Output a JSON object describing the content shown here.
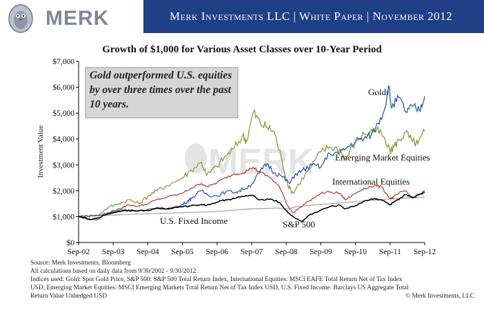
{
  "header": {
    "logo_text": "MERK",
    "banner_text": "Merk Investments LLC  |  White Paper  |  November 2012",
    "banner_color": "#1f3f86"
  },
  "chart_data": {
    "type": "line",
    "title": "Growth of $1,000 for Various Asset Classes over 10-Year Period",
    "xlabel": "",
    "ylabel": "Investment Value",
    "x_ticks": [
      "Sep-02",
      "Sep-03",
      "Sep-04",
      "Sep-05",
      "Sep-06",
      "Sep-07",
      "Sep-08",
      "Sep-09",
      "Sep-10",
      "Sep-11",
      "Sep-12"
    ],
    "y_ticks": [
      "$0",
      "$1,000",
      "$2,000",
      "$3,000",
      "$4,000",
      "$5,000",
      "$6,000",
      "$7,000"
    ],
    "ylim": [
      0,
      7000
    ],
    "grid": false,
    "watermark": "MERK",
    "callout": "Gold outperformed U.S. equities by over three times over the past 10 years.",
    "series": [
      {
        "name": "Gold",
        "color": "#2d5d9f",
        "points": [
          [
            2002.75,
            1000
          ],
          [
            2003.0,
            1020
          ],
          [
            2003.3,
            1040
          ],
          [
            2003.7,
            1160
          ],
          [
            2004.0,
            1280
          ],
          [
            2004.3,
            1220
          ],
          [
            2004.7,
            1230
          ],
          [
            2005.0,
            1350
          ],
          [
            2005.3,
            1300
          ],
          [
            2005.7,
            1420
          ],
          [
            2005.9,
            1600
          ],
          [
            2006.0,
            1700
          ],
          [
            2006.3,
            2000
          ],
          [
            2006.5,
            1830
          ],
          [
            2006.75,
            1800
          ],
          [
            2007.0,
            1960
          ],
          [
            2007.3,
            1950
          ],
          [
            2007.5,
            2050
          ],
          [
            2007.75,
            2250
          ],
          [
            2008.0,
            2750
          ],
          [
            2008.2,
            3050
          ],
          [
            2008.4,
            2700
          ],
          [
            2008.6,
            2580
          ],
          [
            2008.85,
            2280
          ],
          [
            2009.0,
            2620
          ],
          [
            2009.2,
            2770
          ],
          [
            2009.5,
            2990
          ],
          [
            2009.75,
            2920
          ],
          [
            2010.0,
            3450
          ],
          [
            2010.3,
            3460
          ],
          [
            2010.5,
            3670
          ],
          [
            2010.75,
            3900
          ],
          [
            2011.0,
            4020
          ],
          [
            2011.2,
            4150
          ],
          [
            2011.4,
            4610
          ],
          [
            2011.6,
            5200
          ],
          [
            2011.7,
            6050
          ],
          [
            2011.8,
            5200
          ],
          [
            2012.0,
            5600
          ],
          [
            2012.2,
            5050
          ],
          [
            2012.4,
            5250
          ],
          [
            2012.6,
            5100
          ],
          [
            2012.75,
            5650
          ]
        ]
      },
      {
        "name": "Emerging Market Equities",
        "color": "#8c9c3e",
        "points": [
          [
            2002.75,
            1000
          ],
          [
            2003.0,
            1040
          ],
          [
            2003.3,
            1050
          ],
          [
            2003.6,
            1350
          ],
          [
            2003.9,
            1500
          ],
          [
            2004.2,
            1650
          ],
          [
            2004.5,
            1500
          ],
          [
            2004.75,
            1800
          ],
          [
            2005.0,
            2000
          ],
          [
            2005.3,
            2200
          ],
          [
            2005.75,
            2500
          ],
          [
            2006.0,
            2800
          ],
          [
            2006.3,
            3100
          ],
          [
            2006.45,
            2600
          ],
          [
            2006.75,
            2950
          ],
          [
            2007.0,
            3350
          ],
          [
            2007.25,
            3650
          ],
          [
            2007.5,
            4150
          ],
          [
            2007.6,
            3900
          ],
          [
            2007.8,
            5050
          ],
          [
            2008.0,
            4600
          ],
          [
            2008.2,
            4450
          ],
          [
            2008.4,
            4300
          ],
          [
            2008.6,
            3300
          ],
          [
            2008.8,
            2200
          ],
          [
            2008.95,
            1900
          ],
          [
            2009.1,
            2250
          ],
          [
            2009.4,
            2800
          ],
          [
            2009.75,
            3500
          ],
          [
            2010.0,
            3700
          ],
          [
            2010.3,
            3600
          ],
          [
            2010.45,
            3200
          ],
          [
            2010.75,
            3900
          ],
          [
            2011.0,
            4200
          ],
          [
            2011.3,
            4350
          ],
          [
            2011.5,
            4200
          ],
          [
            2011.75,
            3500
          ],
          [
            2011.85,
            3700
          ],
          [
            2012.0,
            3950
          ],
          [
            2012.2,
            4250
          ],
          [
            2012.4,
            3900
          ],
          [
            2012.55,
            3800
          ],
          [
            2012.75,
            4300
          ]
        ]
      },
      {
        "name": "International Equities",
        "color": "#b3423a",
        "points": [
          [
            2002.75,
            1000
          ],
          [
            2003.0,
            900
          ],
          [
            2003.3,
            880
          ],
          [
            2003.6,
            1150
          ],
          [
            2003.9,
            1300
          ],
          [
            2004.2,
            1450
          ],
          [
            2004.5,
            1400
          ],
          [
            2004.75,
            1500
          ],
          [
            2005.0,
            1650
          ],
          [
            2005.3,
            1750
          ],
          [
            2005.75,
            1900
          ],
          [
            2006.0,
            2100
          ],
          [
            2006.3,
            2280
          ],
          [
            2006.5,
            2150
          ],
          [
            2006.75,
            2320
          ],
          [
            2007.0,
            2500
          ],
          [
            2007.25,
            2650
          ],
          [
            2007.5,
            2700
          ],
          [
            2007.8,
            2900
          ],
          [
            2008.0,
            2700
          ],
          [
            2008.3,
            2500
          ],
          [
            2008.55,
            2150
          ],
          [
            2008.8,
            1400
          ],
          [
            2008.95,
            1150
          ],
          [
            2009.1,
            1300
          ],
          [
            2009.4,
            1600
          ],
          [
            2009.75,
            1900
          ],
          [
            2010.0,
            1950
          ],
          [
            2010.3,
            1900
          ],
          [
            2010.45,
            1650
          ],
          [
            2010.75,
            1900
          ],
          [
            2011.0,
            2100
          ],
          [
            2011.3,
            2200
          ],
          [
            2011.5,
            2150
          ],
          [
            2011.75,
            1700
          ],
          [
            2011.85,
            1750
          ],
          [
            2012.0,
            1900
          ],
          [
            2012.2,
            2000
          ],
          [
            2012.4,
            1700
          ],
          [
            2012.6,
            1850
          ],
          [
            2012.75,
            2000
          ]
        ]
      },
      {
        "name": "S&P 500",
        "color": "#000000",
        "points": [
          [
            2002.75,
            1000
          ],
          [
            2002.9,
            960
          ],
          [
            2003.1,
            880
          ],
          [
            2003.3,
            950
          ],
          [
            2003.6,
            1100
          ],
          [
            2003.9,
            1200
          ],
          [
            2004.2,
            1250
          ],
          [
            2004.5,
            1230
          ],
          [
            2004.75,
            1230
          ],
          [
            2005.0,
            1320
          ],
          [
            2005.3,
            1300
          ],
          [
            2005.75,
            1380
          ],
          [
            2006.0,
            1420
          ],
          [
            2006.3,
            1470
          ],
          [
            2006.45,
            1440
          ],
          [
            2006.75,
            1560
          ],
          [
            2007.0,
            1650
          ],
          [
            2007.25,
            1700
          ],
          [
            2007.5,
            1780
          ],
          [
            2007.75,
            1820
          ],
          [
            2008.0,
            1650
          ],
          [
            2008.3,
            1680
          ],
          [
            2008.55,
            1550
          ],
          [
            2008.8,
            1150
          ],
          [
            2008.95,
            1000
          ],
          [
            2009.2,
            800
          ],
          [
            2009.4,
            1050
          ],
          [
            2009.75,
            1250
          ],
          [
            2010.0,
            1380
          ],
          [
            2010.3,
            1440
          ],
          [
            2010.45,
            1300
          ],
          [
            2010.75,
            1420
          ],
          [
            2011.0,
            1600
          ],
          [
            2011.3,
            1700
          ],
          [
            2011.5,
            1650
          ],
          [
            2011.75,
            1450
          ],
          [
            2011.85,
            1550
          ],
          [
            2012.0,
            1650
          ],
          [
            2012.2,
            1850
          ],
          [
            2012.4,
            1750
          ],
          [
            2012.6,
            1850
          ],
          [
            2012.75,
            1950
          ]
        ]
      },
      {
        "name": "U.S. Fixed Income",
        "color": "#a8a8a8",
        "points": [
          [
            2002.75,
            1000
          ],
          [
            2003.5,
            1050
          ],
          [
            2004.75,
            1110
          ],
          [
            2005.75,
            1150
          ],
          [
            2006.75,
            1200
          ],
          [
            2007.75,
            1300
          ],
          [
            2008.5,
            1330
          ],
          [
            2008.85,
            1300
          ],
          [
            2009.0,
            1380
          ],
          [
            2009.75,
            1470
          ],
          [
            2010.75,
            1580
          ],
          [
            2011.75,
            1680
          ],
          [
            2012.75,
            1750
          ]
        ]
      }
    ]
  },
  "footnotes": [
    "Source: Merk Investments, Bloomberg",
    "All calculations based on daily data from 9/30/2002 - 9/30/2012",
    "Indices used: Gold: Spot Gold Price, S&P 500: S&P 500 Total Return Index, International Equities: MSCI EAFE Total Return Net of Tax Index",
    "USD, Emerging Market Equities: MSCI Emerging Markets Total Return Net of Tax Index USD, U.S. Fixed Income: Barclays US Aggregate Total",
    "Return Value Unhedged USD"
  ],
  "copyright": "© Merk Investments, LLC"
}
